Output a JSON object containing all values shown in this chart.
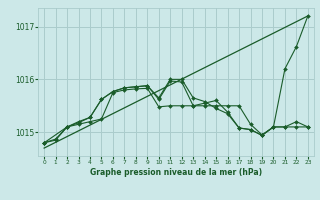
{
  "background_color": "#cce8e8",
  "grid_color": "#aacccc",
  "line_color": "#1a5c2a",
  "title": "Graphe pression niveau de la mer (hPa)",
  "xlim": [
    -0.5,
    23.5
  ],
  "ylim": [
    1014.55,
    1017.35
  ],
  "yticks": [
    1015,
    1016,
    1017
  ],
  "xticks": [
    0,
    1,
    2,
    3,
    4,
    5,
    6,
    7,
    8,
    9,
    10,
    11,
    12,
    13,
    14,
    15,
    16,
    17,
    18,
    19,
    20,
    21,
    22,
    23
  ],
  "diagonal": {
    "x": [
      0,
      23
    ],
    "y": [
      1014.7,
      1017.2
    ]
  },
  "series1": {
    "x": [
      0,
      1,
      2,
      3,
      4,
      5,
      6,
      7,
      8,
      9,
      10,
      11,
      12,
      13,
      14,
      15,
      16,
      17,
      18,
      19,
      20,
      21,
      22,
      23
    ],
    "y": [
      1014.8,
      1014.85,
      1015.1,
      1015.15,
      1015.2,
      1015.25,
      1015.75,
      1015.8,
      1015.82,
      1015.83,
      1015.48,
      1015.5,
      1015.5,
      1015.5,
      1015.5,
      1015.5,
      1015.5,
      1015.5,
      1015.15,
      1014.95,
      1015.1,
      1015.1,
      1015.1,
      1015.1
    ]
  },
  "series2": {
    "x": [
      0,
      1,
      2,
      3,
      4,
      5,
      6,
      7,
      8,
      9,
      10,
      11,
      12,
      13,
      14,
      15,
      16,
      17,
      18,
      19,
      20,
      21,
      22,
      23
    ],
    "y": [
      1014.8,
      1014.87,
      1015.1,
      1015.2,
      1015.28,
      1015.62,
      1015.77,
      1015.84,
      1015.86,
      1015.88,
      1015.62,
      1015.97,
      1015.95,
      1015.5,
      1015.55,
      1015.6,
      1015.38,
      1015.08,
      1015.05,
      1014.94,
      1015.1,
      1015.1,
      1015.2,
      1015.1
    ]
  },
  "series3": {
    "x": [
      0,
      2,
      3,
      4,
      5,
      6,
      7,
      8,
      9,
      10,
      11,
      12,
      13,
      14,
      15,
      16,
      17,
      18,
      19,
      20,
      21,
      22,
      23
    ],
    "y": [
      1014.8,
      1015.1,
      1015.18,
      1015.28,
      1015.62,
      1015.77,
      1015.84,
      1015.86,
      1015.88,
      1015.65,
      1016.0,
      1016.0,
      1015.65,
      1015.58,
      1015.45,
      1015.35,
      1015.08,
      1015.05,
      1014.94,
      1015.1,
      1016.2,
      1016.62,
      1017.2
    ]
  }
}
